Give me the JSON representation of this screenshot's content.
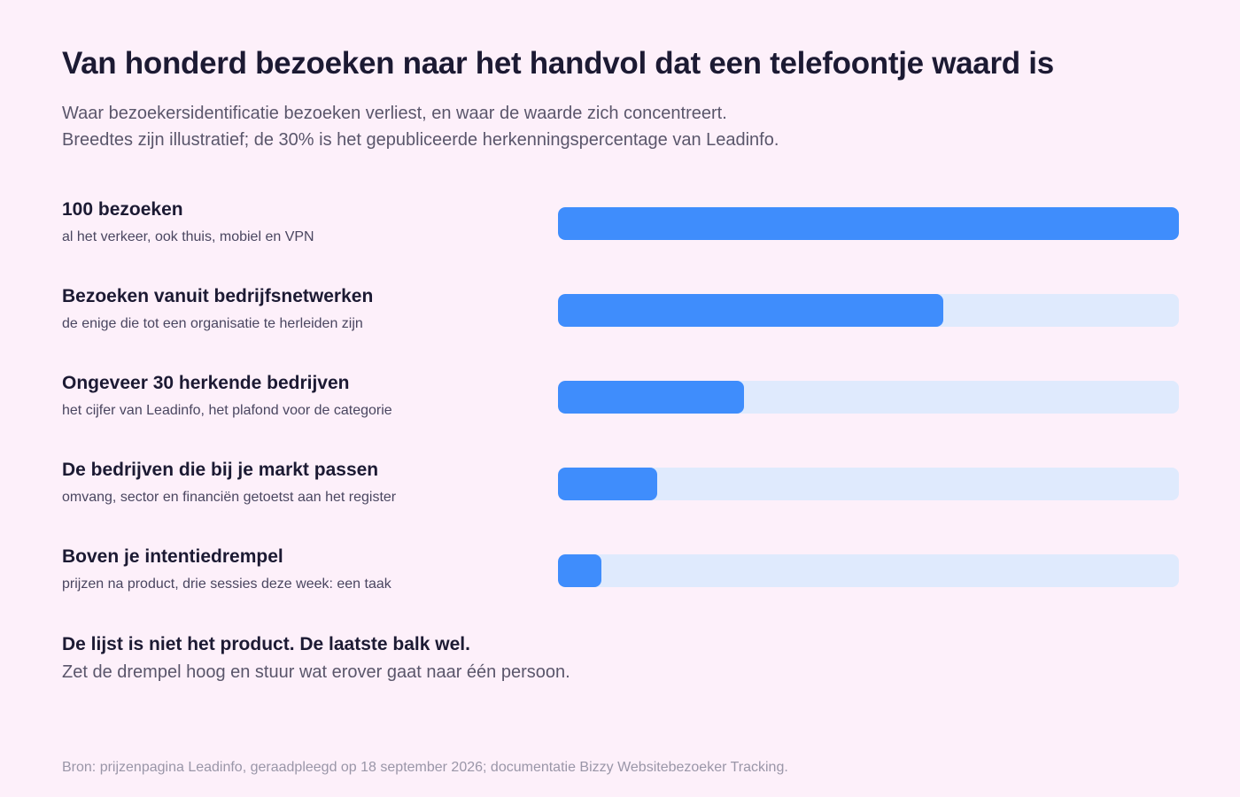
{
  "colors": {
    "background": "#fdf0fa",
    "bar": "#3f8dfc",
    "track": "#dfeafd",
    "text": "#1c1a33"
  },
  "chart_data": {
    "type": "bar",
    "orientation": "horizontal",
    "title": "Van honderd bezoeken naar het handvol dat een telefoontje waard is",
    "subtitle_lines": [
      "Waar bezoekersidentificatie bezoeken verliest, en waar de waarde zich concentreert.",
      "Breedtes zijn illustratief; de 30% is het gepubliceerde herkenningspercentage van Leadinfo."
    ],
    "xlim": [
      0,
      100
    ],
    "grid": false,
    "bars": [
      {
        "label": "100 bezoeken",
        "sub": "al het verkeer, ook thuis, mobiel en VPN",
        "value": 100
      },
      {
        "label": "Bezoeken vanuit bedrijfsnetwerken",
        "sub": "de enige die tot een organisatie te herleiden zijn",
        "value": 62
      },
      {
        "label": "Ongeveer 30 herkende bedrijven",
        "sub": "het cijfer van Leadinfo, het plafond voor de categorie",
        "value": 30
      },
      {
        "label": "De bedrijven die bij je markt passen",
        "sub": "omvang, sector en financiën getoetst aan het register",
        "value": 16
      },
      {
        "label": "Boven je intentiedrempel",
        "sub": "prijzen na product, drie sessies deze week: een taak",
        "value": 7
      }
    ]
  },
  "conclusion": {
    "head": "De lijst is niet het product. De laatste balk wel.",
    "body": "Zet de drempel hoog en stuur wat erover gaat naar één persoon."
  },
  "source": "Bron: prijzenpagina Leadinfo, geraadpleegd op 18 september 2026; documentatie Bizzy Websitebezoeker Tracking."
}
